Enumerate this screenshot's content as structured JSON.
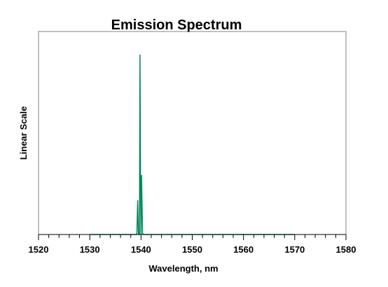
{
  "chart_data": {
    "type": "line",
    "title": "Emission Spectrum",
    "xlabel": "Wavelength, nm",
    "ylabel": "Linear Scale",
    "xlim": [
      1520,
      1580
    ],
    "ylim": [
      0,
      1
    ],
    "x_ticks": [
      "1520",
      "1530",
      "1540",
      "1550",
      "1560",
      "1570",
      "1580"
    ],
    "grid": false,
    "legend": "none",
    "series": [
      {
        "color": "#00875a",
        "x": [
          1530,
          1539.0,
          1539.2,
          1539.35,
          1539.5,
          1539.6,
          1539.7,
          1539.8,
          1539.9,
          1540.0,
          1540.1,
          1540.3,
          1540.6,
          1570
        ],
        "y": [
          0.0,
          0.0,
          0.005,
          0.19,
          0.0,
          0.0,
          0.0,
          1.0,
          0.3,
          0.0,
          0.33,
          0.005,
          0.0,
          0.0
        ]
      }
    ]
  }
}
